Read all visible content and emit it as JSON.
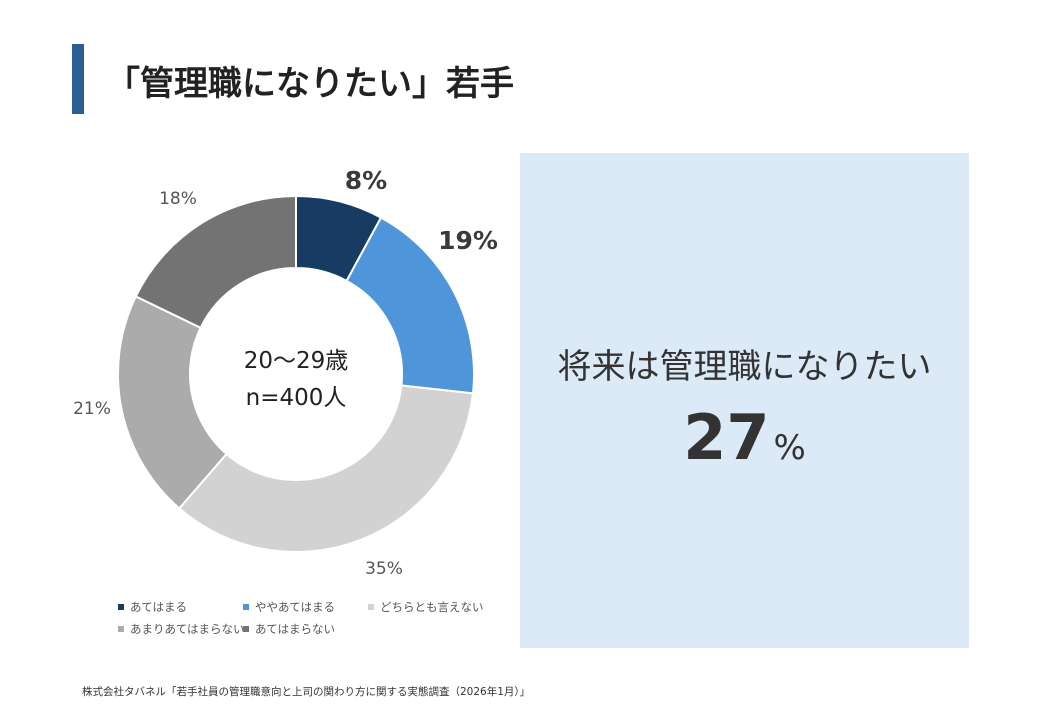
{
  "title": "「管理職になりたい」若手",
  "colors": {
    "accent": "#2b5e93",
    "callout_bg": "#dce9f7"
  },
  "chart_data": {
    "type": "pie",
    "style": "donut",
    "center_label_line1": "20～29歳",
    "center_label_line2": "n=400人",
    "slices": [
      {
        "name": "あてはまる",
        "value": 8,
        "label": "8%",
        "color": "#173b63"
      },
      {
        "name": "ややあてはまる",
        "value": 19,
        "label": "19%",
        "color": "#4f95d9"
      },
      {
        "name": "どちらとも言えない",
        "value": 35,
        "label": "35%",
        "color": "#d2d2d2"
      },
      {
        "name": "あまりあてはまらない",
        "value": 21,
        "label": "21%",
        "color": "#ababab"
      },
      {
        "name": "あてはまらない",
        "value": 18,
        "label": "18%",
        "color": "#737373"
      }
    ],
    "legend_position": "bottom"
  },
  "callout": {
    "label": "将来は管理職になりたい",
    "value": "27",
    "unit": "%"
  },
  "source": "株式会社タバネル「若手社員の管理職意向と上司の関わり方に関する実態調査（2026年1月）」"
}
